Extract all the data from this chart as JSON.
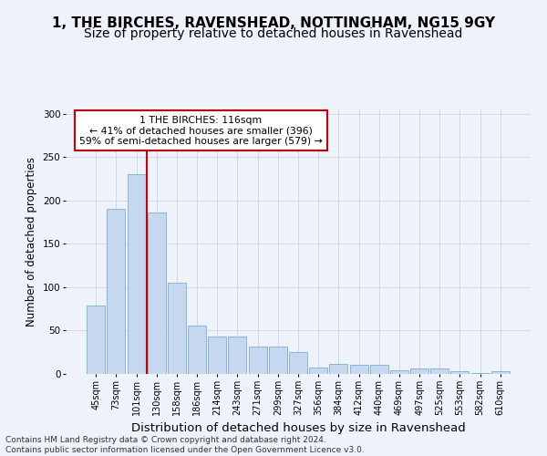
{
  "title_line1": "1, THE BIRCHES, RAVENSHEAD, NOTTINGHAM, NG15 9GY",
  "title_line2": "Size of property relative to detached houses in Ravenshead",
  "xlabel": "Distribution of detached houses by size in Ravenshead",
  "ylabel": "Number of detached properties",
  "categories": [
    "45sqm",
    "73sqm",
    "101sqm",
    "130sqm",
    "158sqm",
    "186sqm",
    "214sqm",
    "243sqm",
    "271sqm",
    "299sqm",
    "327sqm",
    "356sqm",
    "384sqm",
    "412sqm",
    "440sqm",
    "469sqm",
    "497sqm",
    "525sqm",
    "553sqm",
    "582sqm",
    "610sqm"
  ],
  "values": [
    79,
    190,
    230,
    186,
    105,
    56,
    43,
    43,
    32,
    32,
    25,
    7,
    12,
    11,
    10,
    4,
    6,
    6,
    3,
    1,
    3
  ],
  "bar_color": "#c5d8f0",
  "bar_edge_color": "#7bafd4",
  "vline_x_index": 2.5,
  "vline_color": "#cc0000",
  "annotation_text": "1 THE BIRCHES: 116sqm\n← 41% of detached houses are smaller (396)\n59% of semi-detached houses are larger (579) →",
  "annotation_box_color": "#ffffff",
  "annotation_box_edge": "#cc0000",
  "ylim": [
    0,
    305
  ],
  "yticks": [
    0,
    50,
    100,
    150,
    200,
    250,
    300
  ],
  "footnote": "Contains HM Land Registry data © Crown copyright and database right 2024.\nContains public sector information licensed under the Open Government Licence v3.0.",
  "bg_color": "#eef2fb",
  "grid_color": "#d0d8e8",
  "title_fontsize": 11,
  "subtitle_fontsize": 10,
  "tick_fontsize": 7,
  "ylabel_fontsize": 8.5,
  "xlabel_fontsize": 9.5,
  "footnote_fontsize": 6.5
}
